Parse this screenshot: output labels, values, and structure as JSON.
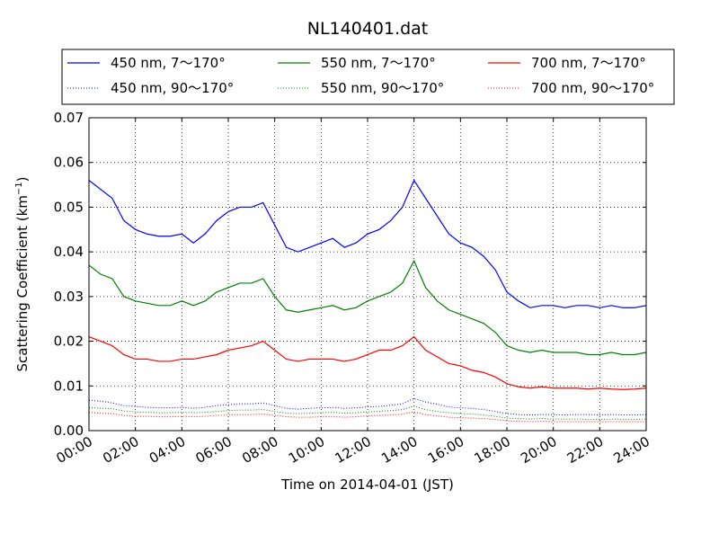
{
  "chart_data": {
    "type": "line",
    "title": "NL140401.dat",
    "xlabel": "Time on 2014-04-01 (JST)",
    "ylabel": "Scattering Coefficient (km",
    "ylabel_sup": "−1",
    "ylabel_close": ")",
    "xlim": [
      0,
      24
    ],
    "ylim": [
      0,
      0.07
    ],
    "x_ticks": [
      0,
      2,
      4,
      6,
      8,
      10,
      12,
      14,
      16,
      18,
      20,
      22,
      24
    ],
    "x_tick_labels": [
      "00:00",
      "02:00",
      "04:00",
      "06:00",
      "08:00",
      "10:00",
      "12:00",
      "14:00",
      "16:00",
      "18:00",
      "20:00",
      "22:00",
      "24:00"
    ],
    "y_ticks": [
      0,
      0.01,
      0.02,
      0.03,
      0.04,
      0.05,
      0.06,
      0.07
    ],
    "y_tick_labels": [
      "0.00",
      "0.01",
      "0.02",
      "0.03",
      "0.04",
      "0.05",
      "0.06",
      "0.07"
    ],
    "grid": true,
    "legend_position": "top, above plot, 3 columns",
    "x": [
      0,
      0.5,
      1,
      1.5,
      2,
      2.5,
      3,
      3.5,
      4,
      4.5,
      5,
      5.5,
      6,
      6.5,
      7,
      7.5,
      8,
      8.5,
      9,
      9.5,
      10,
      10.5,
      11,
      11.5,
      12,
      12.5,
      13,
      13.5,
      14,
      14.5,
      15,
      15.5,
      16,
      16.5,
      17,
      17.5,
      18,
      18.5,
      19,
      19.5,
      20,
      20.5,
      21,
      21.5,
      22,
      22.5,
      23,
      23.5,
      24
    ],
    "series": [
      {
        "name": "450 nm, 7～170°",
        "color": "#0000ff",
        "style": "solid",
        "values": [
          0.056,
          0.054,
          0.052,
          0.047,
          0.045,
          0.044,
          0.0435,
          0.0435,
          0.044,
          0.042,
          0.044,
          0.047,
          0.049,
          0.05,
          0.05,
          0.051,
          0.046,
          0.041,
          0.04,
          0.041,
          0.042,
          0.043,
          0.041,
          0.042,
          0.044,
          0.045,
          0.047,
          0.05,
          0.056,
          0.052,
          0.048,
          0.044,
          0.042,
          0.041,
          0.039,
          0.036,
          0.031,
          0.029,
          0.0275,
          0.028,
          0.028,
          0.0275,
          0.028,
          0.028,
          0.0275,
          0.028,
          0.0275,
          0.0275,
          0.028
        ]
      },
      {
        "name": "450 nm, 90～170°",
        "color": "#0000ff",
        "style": "dotted",
        "values": [
          0.0068,
          0.0066,
          0.0062,
          0.0056,
          0.0054,
          0.0052,
          0.0051,
          0.0051,
          0.0052,
          0.005,
          0.0052,
          0.0056,
          0.0058,
          0.006,
          0.006,
          0.0062,
          0.0056,
          0.005,
          0.0048,
          0.005,
          0.0051,
          0.0052,
          0.005,
          0.0051,
          0.0053,
          0.0054,
          0.0057,
          0.006,
          0.0072,
          0.0064,
          0.0059,
          0.0053,
          0.0051,
          0.005,
          0.0047,
          0.0043,
          0.0038,
          0.0036,
          0.0035,
          0.0036,
          0.0036,
          0.0035,
          0.0036,
          0.0036,
          0.0035,
          0.0036,
          0.0035,
          0.0035,
          0.0036
        ]
      },
      {
        "name": "550 nm, 7～170°",
        "color": "#008000",
        "style": "solid",
        "values": [
          0.037,
          0.035,
          0.034,
          0.03,
          0.029,
          0.0285,
          0.028,
          0.028,
          0.029,
          0.028,
          0.029,
          0.031,
          0.032,
          0.033,
          0.033,
          0.034,
          0.03,
          0.027,
          0.0265,
          0.027,
          0.0275,
          0.028,
          0.027,
          0.0275,
          0.029,
          0.03,
          0.031,
          0.033,
          0.038,
          0.032,
          0.029,
          0.027,
          0.026,
          0.025,
          0.024,
          0.022,
          0.019,
          0.018,
          0.0175,
          0.018,
          0.0175,
          0.0175,
          0.0175,
          0.017,
          0.017,
          0.0175,
          0.017,
          0.017,
          0.0175
        ]
      },
      {
        "name": "550 nm, 90～170°",
        "color": "#008000",
        "style": "dotted",
        "values": [
          0.0052,
          0.005,
          0.0049,
          0.0044,
          0.0042,
          0.0041,
          0.004,
          0.004,
          0.0041,
          0.004,
          0.0041,
          0.0043,
          0.0045,
          0.0046,
          0.0046,
          0.0047,
          0.0043,
          0.0039,
          0.0038,
          0.0039,
          0.004,
          0.0041,
          0.0039,
          0.004,
          0.0042,
          0.0043,
          0.0045,
          0.0047,
          0.0055,
          0.0047,
          0.0043,
          0.004,
          0.0038,
          0.0037,
          0.0035,
          0.0032,
          0.0028,
          0.0027,
          0.0026,
          0.0027,
          0.0026,
          0.0026,
          0.0026,
          0.0025,
          0.0025,
          0.0026,
          0.0025,
          0.0025,
          0.0026
        ]
      },
      {
        "name": "700 nm, 7～170°",
        "color": "#ff0000",
        "style": "solid",
        "values": [
          0.021,
          0.02,
          0.019,
          0.017,
          0.016,
          0.016,
          0.0155,
          0.0155,
          0.016,
          0.016,
          0.0165,
          0.017,
          0.018,
          0.0185,
          0.019,
          0.02,
          0.018,
          0.016,
          0.0155,
          0.016,
          0.016,
          0.016,
          0.0155,
          0.016,
          0.017,
          0.018,
          0.018,
          0.019,
          0.021,
          0.018,
          0.0165,
          0.015,
          0.0145,
          0.0135,
          0.013,
          0.012,
          0.0105,
          0.0098,
          0.0095,
          0.0098,
          0.0095,
          0.0095,
          0.0095,
          0.0093,
          0.0095,
          0.0093,
          0.0092,
          0.0093,
          0.0095
        ]
      },
      {
        "name": "700 nm, 90～170°",
        "color": "#ff0000",
        "style": "dotted",
        "values": [
          0.0041,
          0.0039,
          0.0038,
          0.0034,
          0.0032,
          0.0032,
          0.0031,
          0.0031,
          0.0032,
          0.0031,
          0.0032,
          0.0034,
          0.0035,
          0.0036,
          0.0036,
          0.0037,
          0.0034,
          0.0031,
          0.003,
          0.003,
          0.0031,
          0.0031,
          0.003,
          0.0031,
          0.0033,
          0.0034,
          0.0035,
          0.0037,
          0.0042,
          0.0036,
          0.0033,
          0.003,
          0.0029,
          0.0028,
          0.0027,
          0.0025,
          0.0022,
          0.0021,
          0.002,
          0.0021,
          0.002,
          0.002,
          0.002,
          0.002,
          0.002,
          0.002,
          0.002,
          0.002,
          0.002
        ]
      }
    ]
  }
}
